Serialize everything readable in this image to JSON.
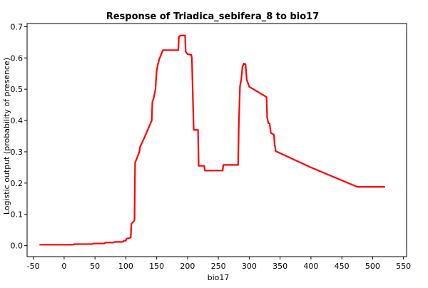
{
  "chart_data": {
    "type": "line",
    "title": "Response of Triadica_sebifera_8 to bio17",
    "xlabel": "bio17",
    "ylabel": "Logistic output (probability of presence)",
    "xlim": [
      -60,
      555
    ],
    "ylim": [
      -0.035,
      0.71
    ],
    "xticks": [
      -50,
      0,
      50,
      100,
      150,
      200,
      250,
      300,
      350,
      400,
      450,
      500,
      550
    ],
    "yticks": [
      0.0,
      0.1,
      0.2,
      0.3,
      0.4,
      0.5,
      0.6,
      0.7
    ],
    "xtick_labels": [
      "-50",
      "0",
      "50",
      "100",
      "150",
      "200",
      "250",
      "300",
      "350",
      "400",
      "450",
      "500",
      "550"
    ],
    "ytick_labels": [
      "0.0",
      "0.1",
      "0.2",
      "0.3",
      "0.4",
      "0.5",
      "0.6",
      "0.7"
    ],
    "grid": true,
    "series_color": "#ff0000",
    "series": [
      {
        "name": "",
        "points": [
          [
            -40,
            0.003
          ],
          [
            15,
            0.003
          ],
          [
            16,
            0.005
          ],
          [
            45,
            0.005
          ],
          [
            47,
            0.007
          ],
          [
            65,
            0.007
          ],
          [
            67,
            0.01
          ],
          [
            80,
            0.01
          ],
          [
            82,
            0.012
          ],
          [
            95,
            0.012
          ],
          [
            97,
            0.016
          ],
          [
            100,
            0.016
          ],
          [
            101,
            0.022
          ],
          [
            105,
            0.024
          ],
          [
            108,
            0.026
          ],
          [
            109,
            0.07
          ],
          [
            113,
            0.078
          ],
          [
            114,
            0.082
          ],
          [
            115,
            0.265
          ],
          [
            118,
            0.28
          ],
          [
            122,
            0.3
          ],
          [
            123,
            0.315
          ],
          [
            130,
            0.345
          ],
          [
            135,
            0.368
          ],
          [
            142,
            0.4
          ],
          [
            143,
            0.46
          ],
          [
            145,
            0.47
          ],
          [
            147,
            0.49
          ],
          [
            148,
            0.5
          ],
          [
            150,
            0.56
          ],
          [
            152,
            0.58
          ],
          [
            154,
            0.595
          ],
          [
            157,
            0.61
          ],
          [
            160,
            0.625
          ],
          [
            185,
            0.625
          ],
          [
            186,
            0.668
          ],
          [
            189,
            0.672
          ],
          [
            196,
            0.672
          ],
          [
            197,
            0.62
          ],
          [
            200,
            0.612
          ],
          [
            206,
            0.61
          ],
          [
            207,
            0.6
          ],
          [
            210,
            0.37
          ],
          [
            217,
            0.37
          ],
          [
            218,
            0.255
          ],
          [
            227,
            0.255
          ],
          [
            228,
            0.24
          ],
          [
            257,
            0.24
          ],
          [
            258,
            0.258
          ],
          [
            282,
            0.258
          ],
          [
            283,
            0.38
          ],
          [
            285,
            0.51
          ],
          [
            287,
            0.53
          ],
          [
            289,
            0.572
          ],
          [
            291,
            0.582
          ],
          [
            294,
            0.58
          ],
          [
            296,
            0.53
          ],
          [
            300,
            0.508
          ],
          [
            328,
            0.475
          ],
          [
            329,
            0.41
          ],
          [
            331,
            0.392
          ],
          [
            333,
            0.39
          ],
          [
            335,
            0.36
          ],
          [
            340,
            0.355
          ],
          [
            341,
            0.325
          ],
          [
            343,
            0.302
          ],
          [
            400,
            0.25
          ],
          [
            475,
            0.188
          ],
          [
            520,
            0.188
          ]
        ]
      }
    ]
  }
}
